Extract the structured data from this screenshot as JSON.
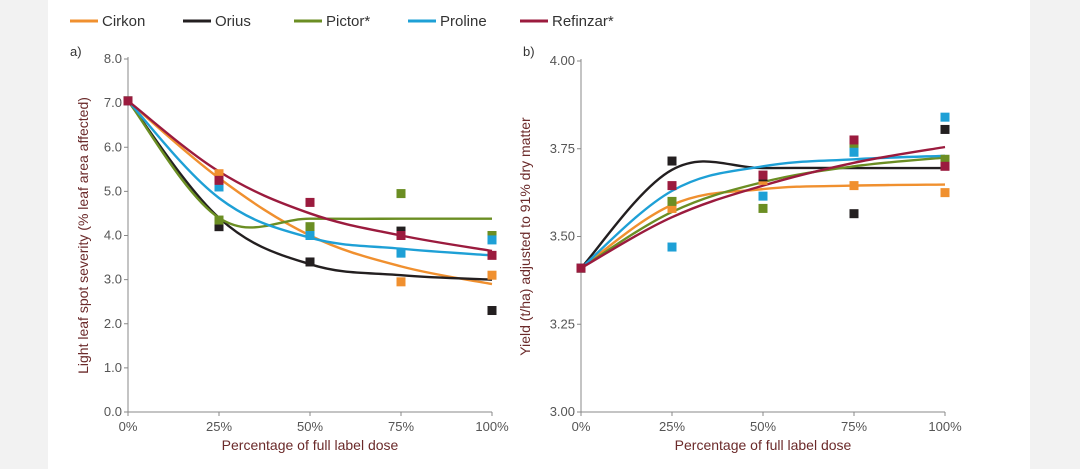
{
  "colors": {
    "Cirkon": "#f0902f",
    "Orius": "#231f20",
    "Pictor*": "#6b8e23",
    "Proline": "#1ea0d6",
    "Refinzar*": "#9b1b3e",
    "axis": "#888888"
  },
  "legend": [
    "Cirkon",
    "Orius",
    "Pictor*",
    "Proline",
    "Refinzar*"
  ],
  "chart_data": [
    {
      "type": "scatter",
      "panel_label": "a)",
      "title": "",
      "xlabel": "Percentage of full label dose",
      "ylabel": "Light leaf spot severity (% leaf area affected)",
      "x_ticks": [
        "0%",
        "25%",
        "50%",
        "75%",
        "100%"
      ],
      "y_ticks": [
        "0.0",
        "1.0",
        "2.0",
        "3.0",
        "4.0",
        "5.0",
        "6.0",
        "7.0",
        "8.0"
      ],
      "xlim": [
        0,
        100
      ],
      "ylim": [
        0,
        8
      ],
      "series": [
        {
          "name": "Cirkon",
          "points": [
            [
              0,
              7.05
            ],
            [
              25,
              5.4
            ],
            [
              50,
              4.0
            ],
            [
              75,
              2.95
            ],
            [
              100,
              3.1
            ]
          ],
          "curve": [
            7.05,
            5.3,
            4.0,
            3.3,
            2.9
          ]
        },
        {
          "name": "Orius",
          "points": [
            [
              0,
              7.05
            ],
            [
              25,
              4.2
            ],
            [
              50,
              3.4
            ],
            [
              75,
              4.1
            ],
            [
              100,
              2.3
            ]
          ],
          "curve": [
            7.05,
            4.4,
            3.35,
            3.1,
            3.0
          ]
        },
        {
          "name": "Pictor*",
          "points": [
            [
              0,
              7.05
            ],
            [
              25,
              4.35
            ],
            [
              50,
              4.2
            ],
            [
              75,
              4.95
            ],
            [
              100,
              4.0
            ]
          ],
          "curve": [
            7.05,
            4.4,
            4.38,
            4.38,
            4.38
          ]
        },
        {
          "name": "Proline",
          "points": [
            [
              0,
              7.05
            ],
            [
              25,
              5.1
            ],
            [
              50,
              4.0
            ],
            [
              75,
              3.6
            ],
            [
              100,
              3.9
            ]
          ],
          "curve": [
            7.05,
            4.85,
            3.95,
            3.7,
            3.55
          ]
        },
        {
          "name": "Refinzar*",
          "points": [
            [
              0,
              7.05
            ],
            [
              25,
              5.25
            ],
            [
              50,
              4.75
            ],
            [
              75,
              4.0
            ],
            [
              100,
              3.55
            ]
          ],
          "curve": [
            7.05,
            5.45,
            4.5,
            4.0,
            3.65
          ]
        }
      ]
    },
    {
      "type": "scatter",
      "panel_label": "b)",
      "title": "",
      "xlabel": "Percentage of full label dose",
      "ylabel": "Yield (t/ha) adjusted to 91% dry matter",
      "x_ticks": [
        "0%",
        "25%",
        "50%",
        "75%",
        "100%"
      ],
      "y_ticks": [
        "3.00",
        "3.25",
        "3.50",
        "3.75",
        "4.00"
      ],
      "xlim": [
        0,
        100
      ],
      "ylim": [
        3.0,
        4.0
      ],
      "series": [
        {
          "name": "Cirkon",
          "points": [
            [
              0,
              3.41
            ],
            [
              25,
              3.58
            ],
            [
              50,
              3.66
            ],
            [
              75,
              3.645
            ],
            [
              100,
              3.625
            ]
          ],
          "curve": [
            3.41,
            3.59,
            3.635,
            3.645,
            3.648
          ]
        },
        {
          "name": "Orius",
          "points": [
            [
              0,
              3.41
            ],
            [
              25,
              3.715
            ],
            [
              50,
              3.67
            ],
            [
              75,
              3.565
            ],
            [
              100,
              3.805
            ]
          ],
          "curve": [
            3.41,
            3.69,
            3.695,
            3.695,
            3.695
          ]
        },
        {
          "name": "Pictor*",
          "points": [
            [
              0,
              3.41
            ],
            [
              25,
              3.6
            ],
            [
              50,
              3.58
            ],
            [
              75,
              3.75
            ],
            [
              100,
              3.72
            ]
          ],
          "curve": [
            3.41,
            3.57,
            3.655,
            3.7,
            3.725
          ]
        },
        {
          "name": "Proline",
          "points": [
            [
              0,
              3.41
            ],
            [
              25,
              3.47
            ],
            [
              50,
              3.615
            ],
            [
              75,
              3.74
            ],
            [
              100,
              3.84
            ]
          ],
          "curve": [
            3.41,
            3.63,
            3.7,
            3.72,
            3.73
          ]
        },
        {
          "name": "Refinzar*",
          "points": [
            [
              0,
              3.41
            ],
            [
              25,
              3.645
            ],
            [
              50,
              3.675
            ],
            [
              75,
              3.775
            ],
            [
              100,
              3.7
            ]
          ],
          "curve": [
            3.41,
            3.555,
            3.645,
            3.71,
            3.755
          ]
        }
      ]
    }
  ]
}
